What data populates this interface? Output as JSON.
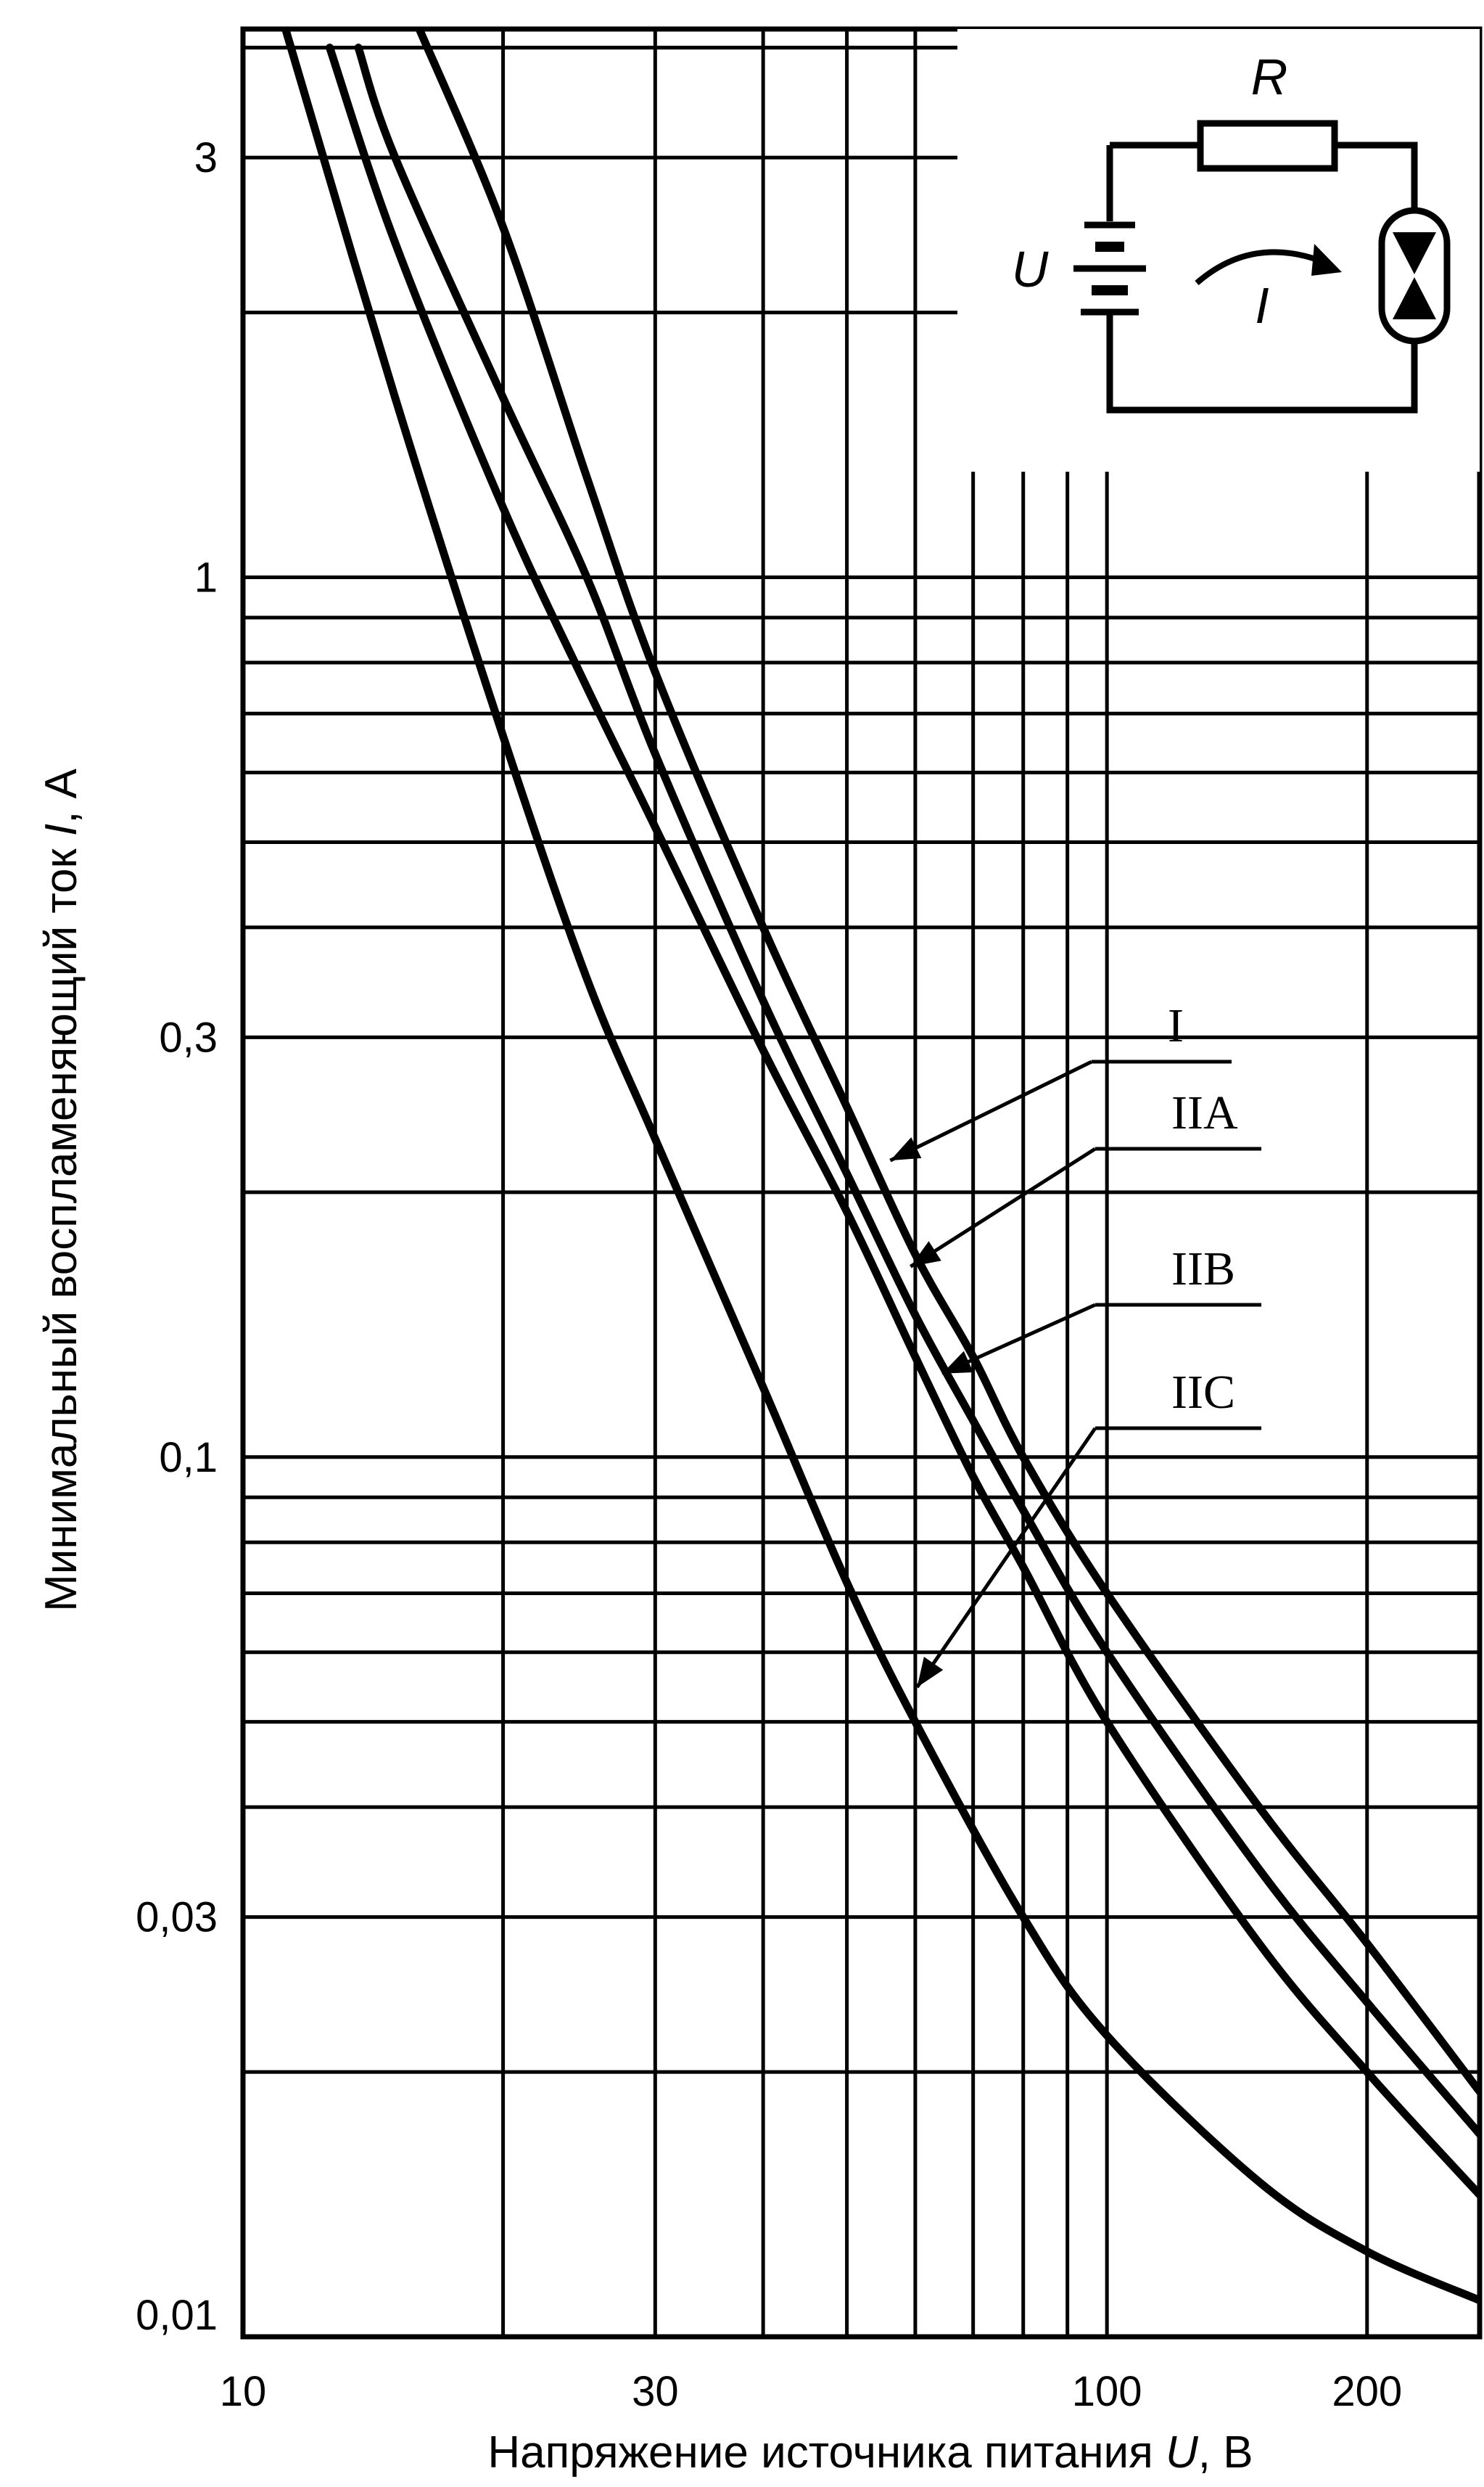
{
  "chart_data": {
    "type": "line",
    "xlabel_parts": [
      "Напряжение источника питания ",
      "U",
      ", В"
    ],
    "ylabel_parts": [
      "Минимальный воспламеняющий ток ",
      "I",
      ", А"
    ],
    "x_scale": "log",
    "y_scale": "log",
    "xlim": [
      10,
      270
    ],
    "ylim": [
      0.01,
      4.2
    ],
    "x_ticks": [
      {
        "value": 10,
        "label": "10"
      },
      {
        "value": 30,
        "label": "30"
      },
      {
        "value": 100,
        "label": "100"
      },
      {
        "value": 200,
        "label": "200"
      }
    ],
    "y_ticks": [
      {
        "value": 0.01,
        "label": "0,01"
      },
      {
        "value": 0.03,
        "label": "0,03"
      },
      {
        "value": 0.1,
        "label": "0,1"
      },
      {
        "value": 0.3,
        "label": "0,3"
      },
      {
        "value": 1,
        "label": "1"
      },
      {
        "value": 3,
        "label": "3"
      }
    ],
    "grid": true,
    "series": [
      {
        "name": "I",
        "points": [
          [
            16,
            4.2
          ],
          [
            20,
            2.5
          ],
          [
            25,
            1.3
          ],
          [
            30,
            0.78
          ],
          [
            40,
            0.4
          ],
          [
            50,
            0.25
          ],
          [
            60,
            0.17
          ],
          [
            70,
            0.13
          ],
          [
            80,
            0.1
          ],
          [
            100,
            0.07
          ],
          [
            150,
            0.04
          ],
          [
            200,
            0.028
          ],
          [
            270,
            0.019
          ]
        ]
      },
      {
        "name": "IIA",
        "points": [
          [
            13.6,
            4.0
          ],
          [
            15,
            3.0
          ],
          [
            20,
            1.6
          ],
          [
            25,
            1.0
          ],
          [
            30,
            0.63
          ],
          [
            40,
            0.33
          ],
          [
            50,
            0.21
          ],
          [
            60,
            0.145
          ],
          [
            70,
            0.11
          ],
          [
            80,
            0.087
          ],
          [
            100,
            0.06
          ],
          [
            150,
            0.034
          ],
          [
            200,
            0.024
          ],
          [
            270,
            0.017
          ]
        ]
      },
      {
        "name": "IIB",
        "points": [
          [
            12.6,
            4.0
          ],
          [
            15,
            2.4
          ],
          [
            20,
            1.2
          ],
          [
            25,
            0.75
          ],
          [
            30,
            0.52
          ],
          [
            40,
            0.29
          ],
          [
            50,
            0.19
          ],
          [
            60,
            0.13
          ],
          [
            70,
            0.095
          ],
          [
            80,
            0.075
          ],
          [
            100,
            0.05
          ],
          [
            150,
            0.028
          ],
          [
            200,
            0.02
          ],
          [
            270,
            0.0145
          ]
        ]
      },
      {
        "name": "IIC",
        "points": [
          [
            11.2,
            4.2
          ],
          [
            15,
            1.6
          ],
          [
            20,
            0.66
          ],
          [
            25,
            0.35
          ],
          [
            30,
            0.23
          ],
          [
            40,
            0.12
          ],
          [
            50,
            0.072
          ],
          [
            60,
            0.05
          ],
          [
            80,
            0.03
          ],
          [
            100,
            0.022
          ],
          [
            150,
            0.015
          ],
          [
            200,
            0.0125
          ],
          [
            270,
            0.011
          ]
        ]
      }
    ],
    "annotations": [
      {
        "text": "I",
        "target_series": "I",
        "at_x": 54
      },
      {
        "text": "IIA",
        "target_series": "IIA",
        "at_x": 57
      },
      {
        "text": "IIB",
        "target_series": "IIB",
        "at_x": 62
      },
      {
        "text": "IIC",
        "target_series": "IIC",
        "at_x": 58
      }
    ]
  },
  "inset": {
    "resistor_label": "R",
    "source_label": "U",
    "current_label": "I"
  }
}
